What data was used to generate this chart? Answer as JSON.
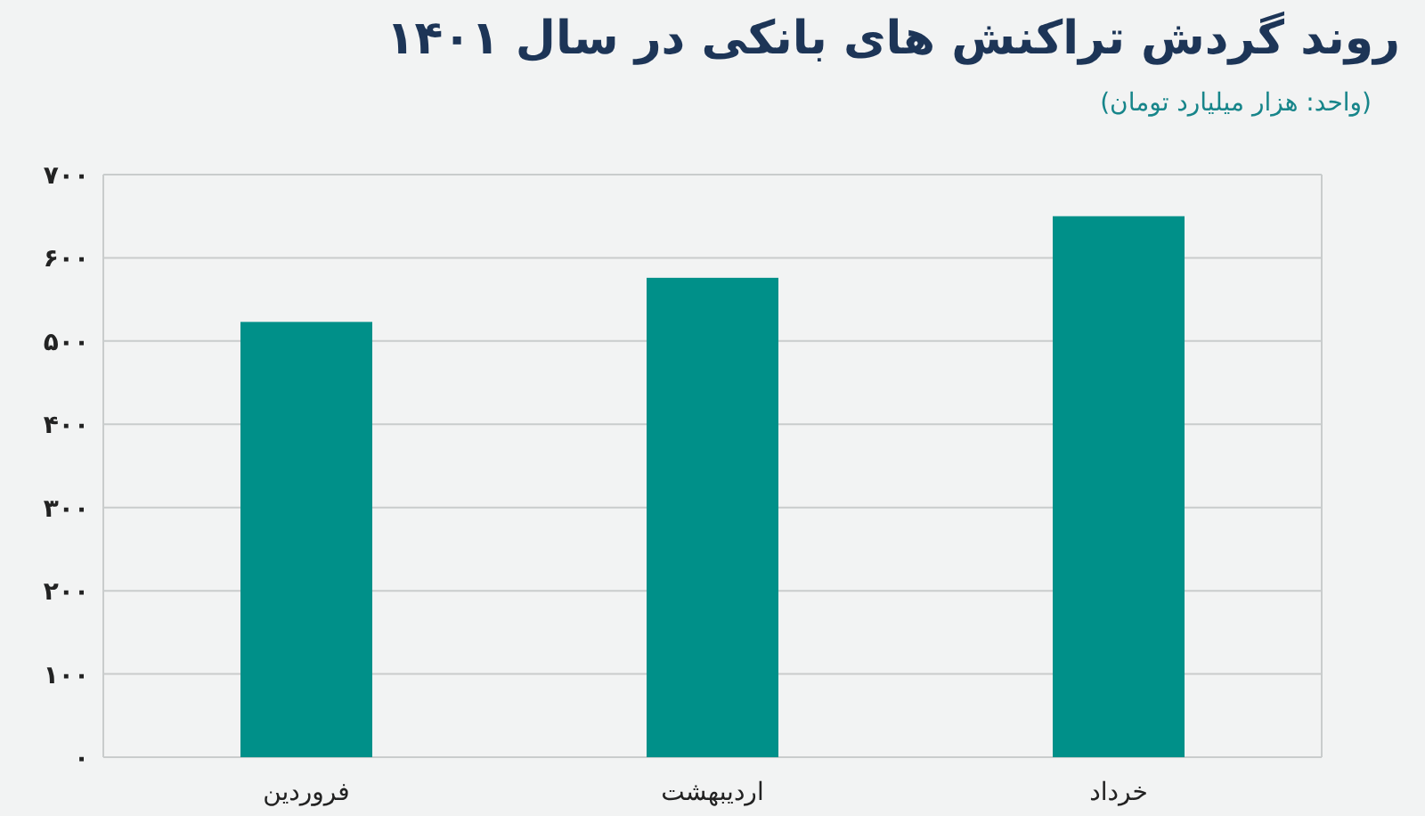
{
  "chart_data": {
    "type": "bar",
    "title": "روند گردش تراکنش های بانکی در سال ۱۴۰۱",
    "subtitle": "(واحد: هزار میلیارد تومان)",
    "categories": [
      "فروردین",
      "اردیبهشت",
      "خرداد"
    ],
    "values": [
      523,
      576,
      650
    ],
    "color": "#009089",
    "ylim": [
      0,
      700
    ],
    "yticks": [
      {
        "value": 0,
        "label": "۰"
      },
      {
        "value": 100,
        "label": "۱۰۰"
      },
      {
        "value": 200,
        "label": "۲۰۰"
      },
      {
        "value": 300,
        "label": "۳۰۰"
      },
      {
        "value": 400,
        "label": "۴۰۰"
      },
      {
        "value": 500,
        "label": "۵۰۰"
      },
      {
        "value": 600,
        "label": "۶۰۰"
      },
      {
        "value": 700,
        "label": "۷۰۰"
      }
    ],
    "grid": "y"
  }
}
